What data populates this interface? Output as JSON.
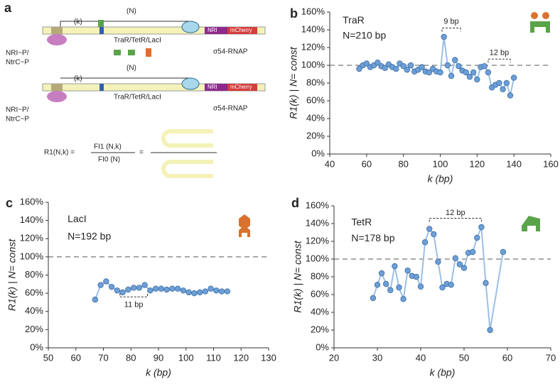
{
  "diagram": {
    "panel": "a",
    "k_label": "(k)",
    "N_label": "(N)",
    "repressors": "TraR/TetR/LacI",
    "activator_line1": "NRI~P/",
    "activator_line2": "NtrC~P",
    "polymerase": "σ54-RNAP",
    "gene1": "NRI",
    "gene2": "mCherry",
    "formula_left": "R1(N,k) =",
    "formula_num": "FI1 (N,k)",
    "formula_den": "FI0 (N)",
    "formula_eq": "="
  },
  "chart_data": [
    {
      "type": "line",
      "panel": "b",
      "x_label": "k (bp)",
      "y_label": "R1(k) | N= const",
      "annotations": [
        "TraR",
        "N=210 bp",
        "9 bp",
        "12 bp"
      ],
      "x": [
        56,
        58,
        60,
        62,
        64,
        66,
        68,
        70,
        72,
        74,
        76,
        78,
        80,
        82,
        84,
        86,
        88,
        90,
        92,
        94,
        96,
        98,
        100,
        102,
        104,
        106,
        108,
        110,
        112,
        114,
        116,
        118,
        120,
        122,
        124,
        126,
        128,
        130,
        132,
        134,
        136,
        138,
        140
      ],
      "values": [
        96,
        100,
        102,
        98,
        100,
        103,
        99,
        97,
        101,
        98,
        96,
        102,
        99,
        95,
        100,
        93,
        95,
        98,
        93,
        92,
        96,
        93,
        92,
        132,
        100,
        88,
        106,
        99,
        94,
        92,
        87,
        92,
        84,
        98,
        99,
        92,
        75,
        78,
        80,
        73,
        80,
        66,
        86
      ],
      "color": "#6d9fd6",
      "reference_line": 100,
      "xlim": [
        40,
        160
      ],
      "xticks": [
        40,
        60,
        80,
        100,
        120,
        140,
        160
      ],
      "ylim": [
        0,
        160
      ],
      "yticks": [
        {
          "value": 0,
          "label": "0%"
        },
        {
          "value": 20,
          "label": "20%"
        },
        {
          "value": 40,
          "label": "40%"
        },
        {
          "value": 60,
          "label": "60%"
        },
        {
          "value": 80,
          "label": "80%"
        },
        {
          "value": 100,
          "label": "100%"
        },
        {
          "value": 120,
          "label": "120%"
        },
        {
          "value": 140,
          "label": "140%"
        },
        {
          "value": 160,
          "label": "160%"
        }
      ]
    },
    {
      "type": "line",
      "panel": "c",
      "x_label": "k (bp)",
      "y_label": "R1(k) | N= const",
      "annotations": [
        "LacI",
        "N=192 bp",
        "11 bp"
      ],
      "x": [
        67,
        69,
        71,
        73,
        75,
        77,
        79,
        81,
        83,
        85,
        87,
        89,
        91,
        93,
        95,
        97,
        99,
        101,
        103,
        105,
        107,
        109,
        111,
        113,
        115
      ],
      "values": [
        53,
        69,
        73,
        67,
        63,
        61,
        64,
        66,
        66,
        69,
        63,
        65,
        65,
        64,
        65,
        65,
        63,
        61,
        60,
        61,
        62,
        65,
        63,
        62,
        62
      ],
      "color": "#6d9fd6",
      "reference_line": 100,
      "xlim": [
        50,
        130
      ],
      "xticks": [
        50,
        60,
        70,
        80,
        90,
        100,
        110,
        120,
        130
      ],
      "ylim": [
        0,
        160
      ],
      "yticks": [
        {
          "value": 0,
          "label": "0%"
        },
        {
          "value": 20,
          "label": "20%"
        },
        {
          "value": 40,
          "label": "40%"
        },
        {
          "value": 60,
          "label": "60%"
        },
        {
          "value": 80,
          "label": "80%"
        },
        {
          "value": 100,
          "label": "100%"
        },
        {
          "value": 120,
          "label": "120%"
        },
        {
          "value": 140,
          "label": "140%"
        },
        {
          "value": 160,
          "label": "160%"
        }
      ]
    },
    {
      "type": "line",
      "panel": "d",
      "x_label": "k (bp)",
      "y_label": "R1(k) | N= const",
      "annotations": [
        "TetR",
        "N=178 bp",
        "12 bp"
      ],
      "x": [
        29,
        30,
        31,
        32,
        33,
        34,
        35,
        36,
        37,
        38,
        39,
        40,
        41,
        42,
        43,
        44,
        45,
        46,
        47,
        48,
        49,
        50,
        51,
        52,
        53,
        54,
        55,
        56,
        59
      ],
      "values": [
        56,
        71,
        84,
        72,
        65,
        92,
        68,
        55,
        87,
        81,
        80,
        69,
        119,
        134,
        128,
        97,
        68,
        72,
        71,
        101,
        94,
        90,
        107,
        108,
        124,
        136,
        73,
        20,
        108
      ],
      "color": "#6d9fd6",
      "reference_line": 100,
      "xlim": [
        20,
        70
      ],
      "xticks": [
        20,
        30,
        40,
        50,
        60,
        70
      ],
      "ylim": [
        0,
        160
      ],
      "yticks": [
        {
          "value": 0,
          "label": "0%"
        },
        {
          "value": 20,
          "label": "20%"
        },
        {
          "value": 40,
          "label": "40%"
        },
        {
          "value": 60,
          "label": "60%"
        },
        {
          "value": 80,
          "label": "80%"
        },
        {
          "value": 100,
          "label": "100%"
        },
        {
          "value": 120,
          "label": "120%"
        },
        {
          "value": 140,
          "label": "140%"
        },
        {
          "value": 160,
          "label": "160%"
        }
      ]
    }
  ]
}
